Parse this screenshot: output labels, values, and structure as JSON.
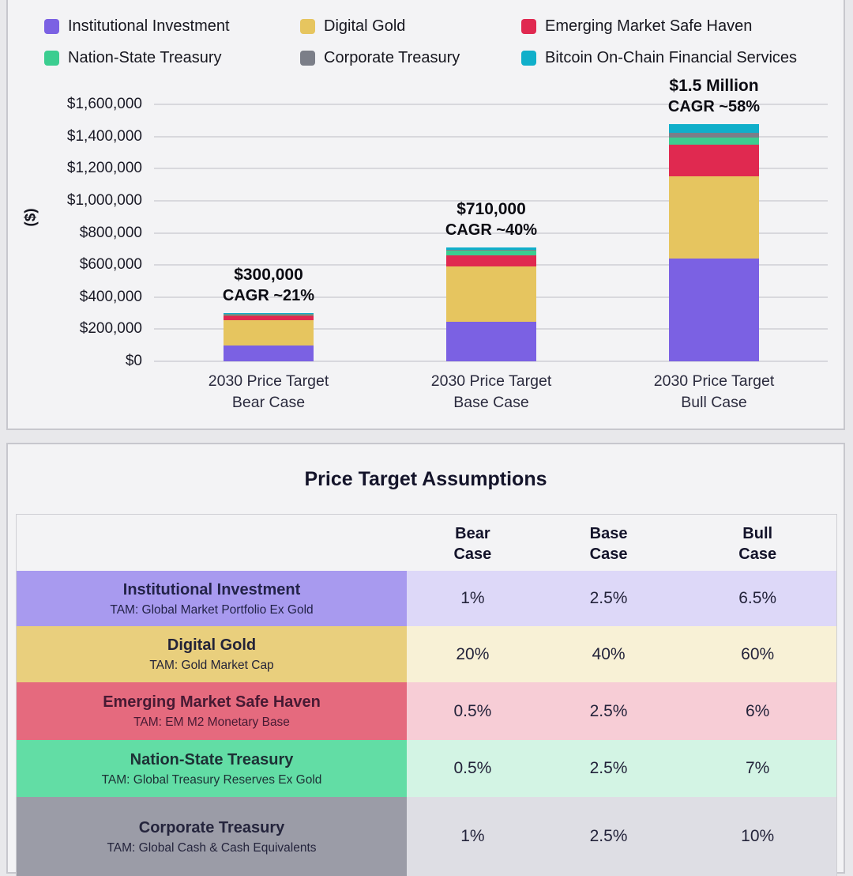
{
  "legend": {
    "items": [
      {
        "label": "Institutional Investment",
        "color": "#7b61e3"
      },
      {
        "label": "Digital Gold",
        "color": "#e6c55f"
      },
      {
        "label": "Emerging Market Safe Haven",
        "color": "#e02950"
      },
      {
        "label": "Nation-State Treasury",
        "color": "#3bcd90"
      },
      {
        "label": "Corporate Treasury",
        "color": "#7b7e88"
      },
      {
        "label": "Bitcoin On-Chain Financial Services",
        "color": "#10afca"
      }
    ]
  },
  "chart_data": {
    "type": "bar",
    "stacked": true,
    "ylabel": "($)",
    "ylim": [
      0,
      1600000
    ],
    "ytick_step": 200000,
    "ytick_labels": [
      "$0",
      "$200,000",
      "$400,000",
      "$600,000",
      "$800,000",
      "$1,000,000",
      "$1,200,000",
      "$1,400,000",
      "$1,600,000"
    ],
    "grid": true,
    "legend_position": "top",
    "categories": [
      {
        "line1": "2030 Price Target",
        "line2": "Bear Case"
      },
      {
        "line1": "2030 Price Target",
        "line2": "Base Case"
      },
      {
        "line1": "2030 Price Target",
        "line2": "Bull Case"
      }
    ],
    "series": [
      {
        "name": "Institutional Investment",
        "color": "#7b61e3",
        "values": [
          100000,
          245000,
          640000
        ]
      },
      {
        "name": "Digital Gold",
        "color": "#e6c55f",
        "values": [
          157000,
          345000,
          510000
        ]
      },
      {
        "name": "Emerging Market Safe Haven",
        "color": "#e02950",
        "values": [
          28000,
          70000,
          200000
        ]
      },
      {
        "name": "Nation-State Treasury",
        "color": "#3bcd90",
        "values": [
          6000,
          28000,
          45000
        ]
      },
      {
        "name": "Corporate Treasury",
        "color": "#7b7e88",
        "values": [
          4000,
          5000,
          30000
        ]
      },
      {
        "name": "Bitcoin On-Chain Financial Services",
        "color": "#10afca",
        "values": [
          5000,
          17000,
          50000
        ]
      }
    ],
    "annotations": [
      {
        "value": "$300,000",
        "cagr": "CAGR ~21%"
      },
      {
        "value": "$710,000",
        "cagr": "CAGR ~40%"
      },
      {
        "value": "$1.5 Million",
        "cagr": "CAGR ~58%"
      }
    ]
  },
  "table": {
    "title": "Price Target Assumptions",
    "columns": [
      {
        "line1": "Bear",
        "line2": "Case"
      },
      {
        "line1": "Base",
        "line2": "Case"
      },
      {
        "line1": "Bull",
        "line2": "Case"
      }
    ],
    "rows": [
      {
        "title": "Institutional Investment",
        "tam": "TAM: Global Market Portfolio Ex Gold",
        "bear": "1%",
        "base": "2.5%",
        "bull": "6.5%",
        "label_bg": "#a89aef",
        "value_bg": "#ddd8f8",
        "title_color": "#232348"
      },
      {
        "title": "Digital Gold",
        "tam": "TAM: Gold Market Cap",
        "bear": "20%",
        "base": "40%",
        "bull": "60%",
        "label_bg": "#e9cf7d",
        "value_bg": "#f8f1d6",
        "title_color": "#232338"
      },
      {
        "title": "Emerging Market Safe Haven",
        "tam": "TAM: EM M2 Monetary Base",
        "bear": "0.5%",
        "base": "2.5%",
        "bull": "6%",
        "label_bg": "#e56a7e",
        "value_bg": "#f7cdd6",
        "title_color": "#471a33"
      },
      {
        "title": "Nation-State Treasury",
        "tam": "TAM: Global Treasury Reserves Ex Gold",
        "bear": "0.5%",
        "base": "2.5%",
        "bull": "7%",
        "label_bg": "#62dda5",
        "value_bg": "#d3f4e4",
        "title_color": "#1d3035"
      },
      {
        "title": "Corporate Treasury",
        "tam": "TAM: Global Cash & Cash Equivalents",
        "bear": "1%",
        "base": "2.5%",
        "bull": "10%",
        "label_bg": "#9b9ca7",
        "value_bg": "#dedee4",
        "title_color": "#24243c"
      }
    ]
  }
}
